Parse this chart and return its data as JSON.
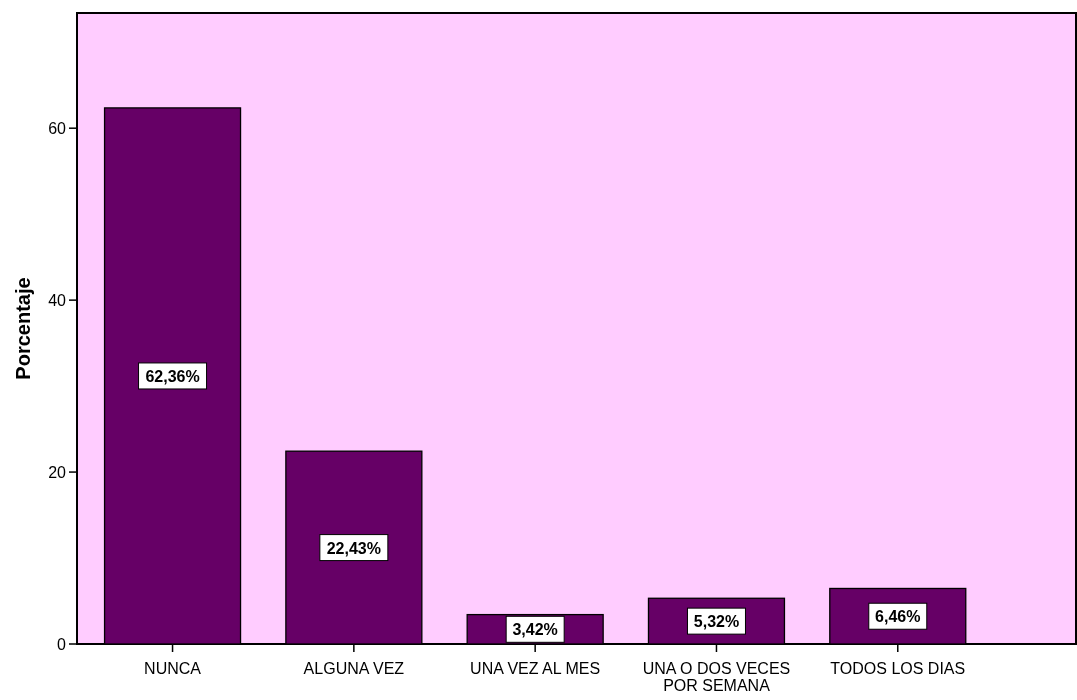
{
  "chart_data": {
    "type": "bar",
    "ylabel": "Porcentaje",
    "categories": [
      "NUNCA",
      "ALGUNA VEZ",
      "UNA VEZ AL MES",
      "UNA O DOS VECES POR SEMANA",
      "TODOS LOS DIAS"
    ],
    "values": [
      62.36,
      22.43,
      3.42,
      5.32,
      6.46
    ],
    "value_labels": [
      "62,36%",
      "22,43%",
      "3,42%",
      "5,32%",
      "6,46%"
    ],
    "color": "#660066",
    "ylim": [
      0,
      73.4
    ],
    "yticks": [
      0,
      20,
      40,
      60
    ],
    "grid": false
  }
}
